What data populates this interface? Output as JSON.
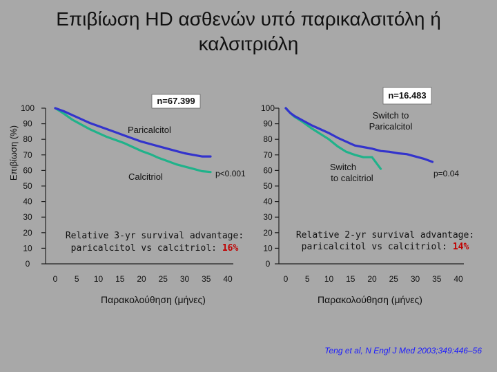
{
  "slide": {
    "title": "Επιβίωση HD ασθενών υπό παρικαλσιτόλη ή\nκαλσιτριόλη",
    "citation": "Teng et al, N Engl J Med 2003;349:446–56"
  },
  "colors": {
    "background": "#a8a8a8",
    "paricalcitol": "#3333cc",
    "calcitriol": "#20b28a",
    "highlight": "#c00000"
  },
  "chart_data": [
    {
      "type": "line",
      "ylabel": "Επιβίωση (%)",
      "xlabel": "Παρακολούθηση (μήνες)",
      "xlim": [
        0,
        40
      ],
      "ylim": [
        0,
        100
      ],
      "xticks": [
        0,
        5,
        10,
        15,
        20,
        25,
        30,
        35,
        40
      ],
      "yticks": [
        0,
        10,
        20,
        30,
        40,
        50,
        60,
        70,
        80,
        90,
        100
      ],
      "series": [
        {
          "name": "Paricalcitol",
          "color": "#3333cc",
          "x": [
            0,
            2,
            4,
            6,
            8,
            10,
            12,
            14,
            16,
            18,
            20,
            22,
            24,
            26,
            28,
            30,
            32,
            34,
            36
          ],
          "y": [
            100,
            98,
            95.5,
            93,
            90.5,
            88.5,
            86.5,
            84.5,
            82.5,
            80.5,
            78.5,
            77,
            75.5,
            74,
            72.5,
            71,
            70,
            69,
            69
          ]
        },
        {
          "name": "Calcitriol",
          "color": "#20b28a",
          "x": [
            0,
            2,
            4,
            6,
            8,
            10,
            12,
            14,
            16,
            18,
            20,
            22,
            24,
            26,
            28,
            30,
            32,
            34,
            36
          ],
          "y": [
            100,
            96.5,
            92.5,
            89.5,
            86.5,
            84,
            81.5,
            79.5,
            77.5,
            75,
            72.5,
            70.5,
            68,
            66,
            64,
            62.5,
            61,
            59.5,
            59
          ]
        }
      ],
      "annotations": {
        "n": "n=67.399",
        "paricalcitol": "Paricalcitol",
        "calcitriol": "Calcitriol",
        "p": "p<0.001",
        "note_line1": "Relative 3-yr survival advantage:",
        "note_line2": "paricalcitol vs calcitriol: ",
        "note_value": "16%"
      }
    },
    {
      "type": "line",
      "xlabel": "Παρακολούθηση (μήνες)",
      "xlim": [
        0,
        40
      ],
      "ylim": [
        0,
        100
      ],
      "xticks": [
        0,
        5,
        10,
        15,
        20,
        25,
        30,
        35,
        40
      ],
      "yticks": [
        0,
        10,
        20,
        30,
        40,
        50,
        60,
        70,
        80,
        90,
        100
      ],
      "series": [
        {
          "name": "Switch to Paricalcitol",
          "color": "#3333cc",
          "x": [
            0,
            1,
            2,
            4,
            6,
            8,
            10,
            12,
            14,
            16,
            18,
            20,
            22,
            24,
            26,
            28,
            30,
            32,
            34
          ],
          "y": [
            100,
            97,
            95,
            92,
            89,
            86.5,
            84,
            81,
            78.5,
            76,
            75,
            74,
            72.5,
            72,
            71,
            70.5,
            69,
            67.5,
            65.5
          ]
        },
        {
          "name": "Switch to calcitriol",
          "color": "#20b28a",
          "x": [
            0,
            1,
            2,
            4,
            6,
            8,
            10,
            12,
            14,
            16,
            18,
            20,
            22
          ],
          "y": [
            100,
            97,
            94.5,
            91,
            87,
            83.5,
            80,
            75.5,
            72,
            70,
            68.5,
            68.5,
            61
          ]
        }
      ],
      "annotations": {
        "n": "n=16.483",
        "switch_par_1": "Switch to",
        "switch_par_2": "Paricalcitol",
        "switch_cal_1": "Switch",
        "switch_cal_2": "to calcitriol",
        "p": "p=0.04",
        "note_line1": "Relative 2-yr survival advantage:",
        "note_line2": "paricalcitol vs calcitriol: ",
        "note_value": "14%"
      }
    }
  ]
}
